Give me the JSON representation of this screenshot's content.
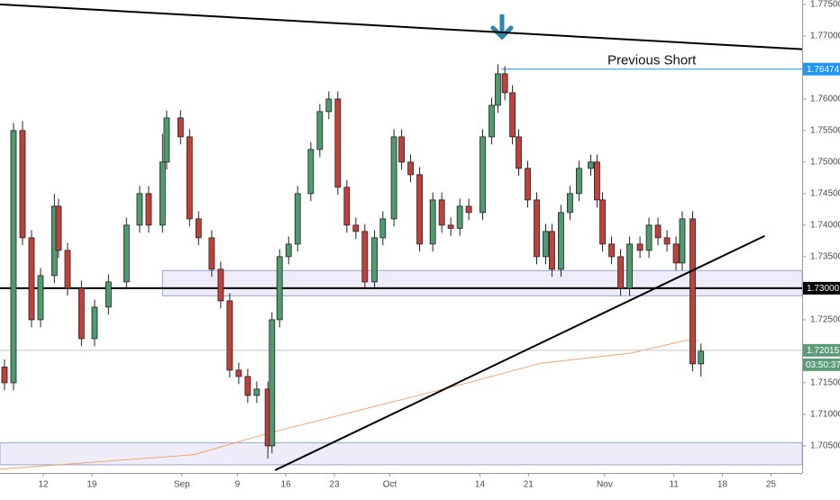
{
  "chart_data": {
    "type": "candlestick",
    "x": [
      6.4,
      7.7,
      9.0,
      10.3,
      11.6,
      13.6,
      14.2,
      15.5,
      17.5,
      19.4,
      21.4,
      24.0,
      25.9,
      27.2,
      29.2,
      29.8,
      31.8,
      33.1,
      34.4,
      36.3,
      37.6,
      38.9,
      40.2,
      41.5,
      42.8,
      44.4,
      45.0,
      46.1,
      47.4,
      48.7,
      50.6,
      51.9,
      53.2,
      54.5,
      55.8,
      57.1,
      58.4,
      59.8,
      61.0,
      62.6,
      63.7,
      65.0,
      66.3,
      68.2,
      69.5,
      70.8,
      72.1,
      73.4,
      75.4,
      76.7,
      77.6,
      78.6,
      79.7,
      80.6,
      81.9,
      83.2,
      84.5,
      85.4,
      86.7,
      88.0,
      89.3,
      91.0,
      91.9,
      92.7,
      94.0,
      95.3,
      96.6,
      98.1,
      99.4,
      100.7,
      102.0,
      103.3,
      104.2,
      105.7,
      106.9
    ],
    "open": [
      1.7175,
      1.715,
      1.755,
      1.738,
      1.725,
      1.732,
      1.743,
      1.736,
      1.73,
      1.722,
      1.727,
      1.731,
      1.74,
      1.745,
      1.74,
      1.75,
      1.757,
      1.754,
      1.741,
      1.738,
      1.733,
      1.728,
      1.717,
      1.716,
      1.713,
      1.714,
      1.705,
      1.725,
      1.735,
      1.737,
      1.745,
      1.752,
      1.758,
      1.76,
      1.746,
      1.74,
      1.739,
      1.731,
      1.738,
      1.741,
      1.754,
      1.75,
      1.748,
      1.737,
      1.744,
      1.74,
      1.7395,
      1.743,
      1.742,
      1.754,
      1.759,
      1.764,
      1.761,
      1.754,
      1.749,
      1.744,
      1.735,
      1.739,
      1.733,
      1.742,
      1.745,
      1.749,
      1.75,
      1.744,
      1.737,
      1.735,
      1.73,
      1.737,
      1.736,
      1.74,
      1.738,
      1.737,
      1.734,
      1.741,
      1.718
    ],
    "high": [
      1.7187,
      1.7562,
      1.7565,
      1.7392,
      1.7332,
      1.745,
      1.7442,
      1.7372,
      1.7312,
      1.7282,
      1.7322,
      1.7412,
      1.7462,
      1.7462,
      1.7545,
      1.7582,
      1.7582,
      1.7552,
      1.7422,
      1.7392,
      1.7342,
      1.7292,
      1.7182,
      1.7172,
      1.7152,
      1.7152,
      1.7262,
      1.7362,
      1.7382,
      1.7462,
      1.7532,
      1.7592,
      1.7612,
      1.7612,
      1.7472,
      1.7412,
      1.7402,
      1.7392,
      1.7422,
      1.7552,
      1.7552,
      1.7512,
      1.7492,
      1.7452,
      1.7452,
      1.7412,
      1.7442,
      1.7442,
      1.7552,
      1.7602,
      1.7655,
      1.7652,
      1.7622,
      1.7552,
      1.7502,
      1.7452,
      1.7402,
      1.7402,
      1.7432,
      1.7462,
      1.7502,
      1.7512,
      1.7512,
      1.7452,
      1.7382,
      1.7362,
      1.7382,
      1.7382,
      1.7412,
      1.7412,
      1.7392,
      1.7382,
      1.7422,
      1.7422,
      1.7212
    ],
    "low": [
      1.7138,
      1.7138,
      1.7368,
      1.7238,
      1.7238,
      1.7308,
      1.7348,
      1.7288,
      1.7208,
      1.7208,
      1.7258,
      1.7298,
      1.7388,
      1.7388,
      1.7388,
      1.7488,
      1.7528,
      1.7398,
      1.7368,
      1.7318,
      1.7268,
      1.7158,
      1.7148,
      1.7118,
      1.7118,
      1.703,
      1.7038,
      1.7238,
      1.7338,
      1.7358,
      1.7438,
      1.7508,
      1.7568,
      1.7448,
      1.7388,
      1.7378,
      1.7298,
      1.7298,
      1.7368,
      1.7398,
      1.7488,
      1.7468,
      1.7358,
      1.7358,
      1.7388,
      1.7383,
      1.7383,
      1.7408,
      1.7408,
      1.7528,
      1.7578,
      1.7598,
      1.7528,
      1.7478,
      1.7428,
      1.7338,
      1.7338,
      1.7318,
      1.7318,
      1.7408,
      1.7438,
      1.7478,
      1.7428,
      1.7358,
      1.7338,
      1.7288,
      1.7288,
      1.7348,
      1.7348,
      1.7368,
      1.7358,
      1.7328,
      1.7328,
      1.7168,
      1.716
    ],
    "close": [
      1.715,
      1.755,
      1.738,
      1.725,
      1.732,
      1.743,
      1.736,
      1.73,
      1.722,
      1.727,
      1.731,
      1.74,
      1.745,
      1.74,
      1.75,
      1.757,
      1.754,
      1.741,
      1.738,
      1.733,
      1.728,
      1.717,
      1.716,
      1.713,
      1.714,
      1.705,
      1.725,
      1.735,
      1.737,
      1.745,
      1.752,
      1.758,
      1.76,
      1.746,
      1.74,
      1.739,
      1.731,
      1.738,
      1.741,
      1.754,
      1.75,
      1.748,
      1.737,
      1.744,
      1.74,
      1.7395,
      1.743,
      1.742,
      1.754,
      1.759,
      1.764,
      1.761,
      1.754,
      1.749,
      1.744,
      1.735,
      1.739,
      1.733,
      1.742,
      1.745,
      1.749,
      1.75,
      1.744,
      1.737,
      1.735,
      1.73,
      1.737,
      1.736,
      1.74,
      1.738,
      1.737,
      1.734,
      1.741,
      1.718,
      1.72
    ],
    "up_color": "#4f9a6e",
    "down_color": "#c2403b",
    "xlim": [
      5.75,
      121.5
    ],
    "ylim": [
      1.7007,
      1.7757
    ],
    "xticks": [
      12,
      19,
      {
        "value": 32,
        "label": "Sep"
      },
      {
        "value": 40,
        "label": "9"
      },
      {
        "value": 47,
        "label": "16"
      },
      {
        "value": 54,
        "label": "23"
      },
      {
        "value": 62,
        "label": "Oct"
      },
      {
        "value": 75,
        "label": "14"
      },
      {
        "value": 82,
        "label": "21"
      },
      {
        "value": 93,
        "label": "Nov"
      },
      {
        "value": 103,
        "label": "11"
      },
      {
        "value": 110,
        "label": "18"
      },
      {
        "value": 117,
        "label": "25"
      }
    ],
    "yticks": [
      {
        "value": 1.775,
        "label": "1.77500"
      },
      {
        "value": 1.77,
        "label": "1.77000"
      },
      {
        "value": 1.76,
        "label": "1.76000"
      },
      {
        "value": 1.755,
        "label": "1.75500"
      },
      {
        "value": 1.75,
        "label": "1.75000"
      },
      {
        "value": 1.745,
        "label": "1.74500"
      },
      {
        "value": 1.74,
        "label": "1.74000"
      },
      {
        "value": 1.735,
        "label": "1.73500"
      },
      {
        "value": 1.725,
        "label": "1.72500"
      },
      {
        "value": 1.715,
        "label": "1.71500"
      },
      {
        "value": 1.71,
        "label": "1.71000"
      },
      {
        "value": 1.705,
        "label": "1.70500"
      }
    ],
    "moving_average": {
      "color": "#f2a56b",
      "x": [
        5.75,
        33.7,
        44.8,
        57.8,
        70.8,
        83.8,
        96.8,
        104.6,
        106.6
      ],
      "y": [
        1.7013,
        1.7036,
        1.7071,
        1.7107,
        1.7143,
        1.7181,
        1.7197,
        1.7217,
        1.7217
      ]
    },
    "trendlines": [
      {
        "x": [
          5.75,
          121.5
        ],
        "y": [
          1.775,
          1.7679
        ],
        "color": "#000000"
      },
      {
        "x": [
          45.44,
          116.09
        ],
        "y": [
          1.70114,
          1.73829
        ],
        "color": "#000000"
      }
    ],
    "zones": [
      {
        "x_start": 29.2,
        "y": [
          1.7288,
          1.7328
        ]
      },
      {
        "x_start": 5.75,
        "y": [
          1.702,
          1.7055
        ]
      }
    ],
    "hlines": [
      {
        "y": 1.73,
        "x_start": 5.75,
        "color": "#000000"
      },
      {
        "y": 1.76474,
        "x_start": 78.1,
        "color": "#2196f3",
        "label": "Previous Short"
      }
    ],
    "price_labels": [
      {
        "value": 1.76474,
        "label": "1.76474",
        "color": "#2196f3"
      },
      {
        "value": 1.73,
        "label": "1.73000",
        "color": "#000000"
      },
      {
        "value": 1.72015,
        "label": "1.72015",
        "color": "#5d9c78"
      }
    ],
    "countdown": "03:50:37"
  }
}
